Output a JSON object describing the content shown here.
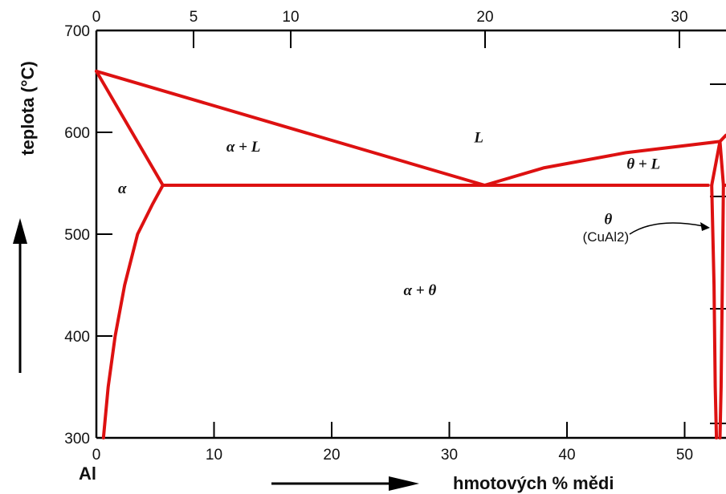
{
  "chart_data": {
    "type": "line",
    "title": "",
    "xlabel": "hmotových % mědi",
    "ylabel": "teplota (°C)",
    "x_start_label": "Al",
    "xlim": [
      0,
      53.5
    ],
    "ylim": [
      300,
      700
    ],
    "top_xlim": [
      0,
      33
    ],
    "x_ticks": [
      0,
      10,
      20,
      30,
      40,
      50
    ],
    "y_ticks": [
      300,
      400,
      500,
      600,
      700
    ],
    "top_x_ticks": [
      0,
      5,
      10,
      20,
      30
    ],
    "grid": false,
    "line_color": "#dd1111",
    "series": [
      {
        "values": [
          [
            0,
            660
          ],
          [
            5.65,
            548
          ]
        ]
      },
      {
        "values": [
          [
            0,
            660
          ],
          [
            33,
            548
          ]
        ]
      },
      {
        "values": [
          [
            33,
            548
          ],
          [
            38,
            565
          ],
          [
            45,
            580
          ],
          [
            53,
            591
          ]
        ]
      },
      {
        "values": [
          [
            53,
            591
          ],
          [
            53.5,
            597
          ]
        ]
      },
      {
        "values": [
          [
            5.65,
            548
          ],
          [
            52,
            548
          ]
        ]
      },
      {
        "values": [
          [
            5.65,
            548
          ],
          [
            4.8,
            530
          ],
          [
            3.5,
            500
          ],
          [
            2.4,
            450
          ],
          [
            1.6,
            400
          ],
          [
            1.0,
            350
          ],
          [
            0.6,
            300
          ]
        ]
      },
      {
        "values": [
          [
            52.3,
            548
          ],
          [
            52.5,
            450
          ],
          [
            52.6,
            350
          ],
          [
            52.7,
            300
          ]
        ]
      },
      {
        "values": [
          [
            53,
            591
          ],
          [
            52.3,
            548
          ]
        ]
      },
      {
        "values": [
          [
            53,
            591
          ],
          [
            53.3,
            548
          ],
          [
            53.2,
            450
          ],
          [
            53.1,
            350
          ],
          [
            53.0,
            300
          ]
        ]
      },
      {
        "values": [
          [
            53.3,
            548
          ],
          [
            53.5,
            548
          ]
        ]
      }
    ],
    "annotations": [
      {
        "text": "L",
        "x": 32.5,
        "y": 590
      },
      {
        "text": "α + L",
        "x": 12.5,
        "y": 581
      },
      {
        "text": "α",
        "x": 2.2,
        "y": 540
      },
      {
        "text": "θ + L",
        "x": 46.5,
        "y": 564
      },
      {
        "text": "α + θ",
        "x": 27.5,
        "y": 440
      },
      {
        "text": "θ",
        "x": 43.5,
        "y": 510
      },
      {
        "text": "(CuAl2)",
        "x": 43.3,
        "y": 493
      }
    ]
  }
}
